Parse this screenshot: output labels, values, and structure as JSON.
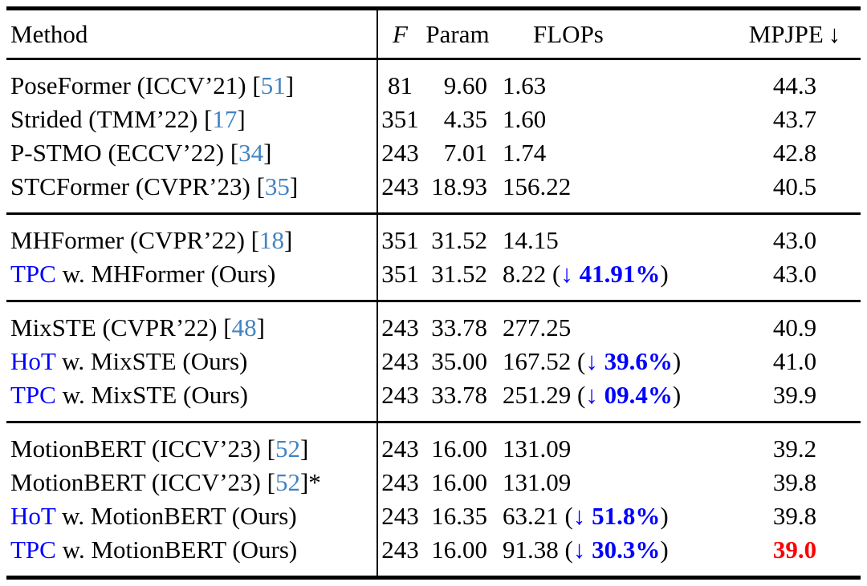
{
  "colors": {
    "citation_blue": "#4183c4",
    "accent_blue": "#0000ff",
    "highlight_red": "#ff0000",
    "rule_black": "#000000",
    "background": "#ffffff"
  },
  "header": {
    "method": "Method",
    "frames": "F",
    "param": "Param",
    "flops": "FLOPs",
    "mpjpe": "MPJPE",
    "mpjpe_arrow": "↓"
  },
  "groups": [
    {
      "rows": [
        {
          "method_prefix": "",
          "method_text": "PoseFormer (ICCV’21) ",
          "cite": "51",
          "cite_suffix": "",
          "f": "81",
          "param": "9.60",
          "flops": "1.63",
          "flops_drop": "",
          "mpjpe": "44.3",
          "mpjpe_highlight": false
        },
        {
          "method_prefix": "",
          "method_text": "Strided (TMM’22) ",
          "cite": "17",
          "cite_suffix": "",
          "f": "351",
          "param": "4.35",
          "flops": "1.60",
          "flops_drop": "",
          "mpjpe": "43.7",
          "mpjpe_highlight": false
        },
        {
          "method_prefix": "",
          "method_text": "P-STMO (ECCV’22) ",
          "cite": "34",
          "cite_suffix": "",
          "f": "243",
          "param": "7.01",
          "flops": "1.74",
          "flops_drop": "",
          "mpjpe": "42.8",
          "mpjpe_highlight": false
        },
        {
          "method_prefix": "",
          "method_text": "STCFormer (CVPR’23) ",
          "cite": "35",
          "cite_suffix": "",
          "f": "243",
          "param": "18.93",
          "flops": "156.22",
          "flops_drop": "",
          "mpjpe": "40.5",
          "mpjpe_highlight": false
        }
      ]
    },
    {
      "rows": [
        {
          "method_prefix": "",
          "method_text": "MHFormer (CVPR’22) ",
          "cite": "18",
          "cite_suffix": "",
          "f": "351",
          "param": "31.52",
          "flops": "14.15",
          "flops_drop": "",
          "mpjpe": "43.0",
          "mpjpe_highlight": false
        },
        {
          "method_prefix": "TPC",
          "method_text": " w. MHFormer (Ours)",
          "cite": "",
          "cite_suffix": "",
          "f": "351",
          "param": "31.52",
          "flops": "8.22",
          "flops_drop": "41.91%",
          "mpjpe": "43.0",
          "mpjpe_highlight": false
        }
      ]
    },
    {
      "rows": [
        {
          "method_prefix": "",
          "method_text": "MixSTE (CVPR’22) ",
          "cite": "48",
          "cite_suffix": "",
          "f": "243",
          "param": "33.78",
          "flops": "277.25",
          "flops_drop": "",
          "mpjpe": "40.9",
          "mpjpe_highlight": false
        },
        {
          "method_prefix": "HoT",
          "method_text": " w. MixSTE (Ours)",
          "cite": "",
          "cite_suffix": "",
          "f": "243",
          "param": "35.00",
          "flops": "167.52",
          "flops_drop": "39.6%",
          "mpjpe": "41.0",
          "mpjpe_highlight": false
        },
        {
          "method_prefix": "TPC",
          "method_text": " w. MixSTE (Ours)",
          "cite": "",
          "cite_suffix": "",
          "f": "243",
          "param": "33.78",
          "flops": "251.29",
          "flops_drop": "09.4%",
          "mpjpe": "39.9",
          "mpjpe_highlight": false
        }
      ]
    },
    {
      "rows": [
        {
          "method_prefix": "",
          "method_text": "MotionBERT (ICCV’23) ",
          "cite": "52",
          "cite_suffix": "",
          "f": "243",
          "param": "16.00",
          "flops": "131.09",
          "flops_drop": "",
          "mpjpe": "39.2",
          "mpjpe_highlight": false
        },
        {
          "method_prefix": "",
          "method_text": "MotionBERT (ICCV’23) ",
          "cite": "52",
          "cite_suffix": "*",
          "f": "243",
          "param": "16.00",
          "flops": "131.09",
          "flops_drop": "",
          "mpjpe": "39.8",
          "mpjpe_highlight": false
        },
        {
          "method_prefix": "HoT",
          "method_text": " w. MotionBERT (Ours)",
          "cite": "",
          "cite_suffix": "",
          "f": "243",
          "param": "16.35",
          "flops": "63.21",
          "flops_drop": "51.8%",
          "mpjpe": "39.8",
          "mpjpe_highlight": false
        },
        {
          "method_prefix": "TPC",
          "method_text": " w. MotionBERT (Ours)",
          "cite": "",
          "cite_suffix": "",
          "f": "243",
          "param": "16.00",
          "flops": "91.38",
          "flops_drop": "30.3%",
          "mpjpe": "39.0",
          "mpjpe_highlight": true
        }
      ]
    }
  ],
  "annotation": {
    "drop_arrow": "↓",
    "open_paren": " (",
    "close_paren": ")",
    "cite_open": "[",
    "cite_close": "]"
  }
}
